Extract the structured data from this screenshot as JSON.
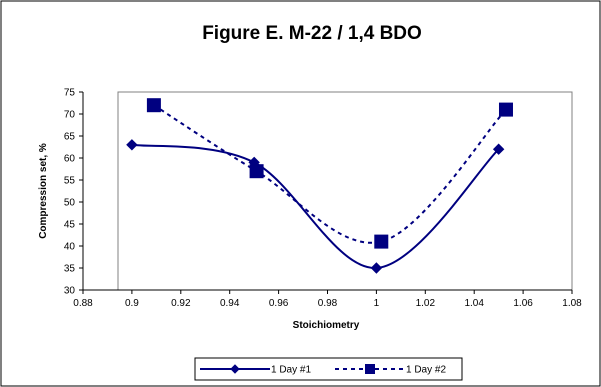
{
  "chart_data": {
    "type": "line",
    "title": "Figure E.  M-22 / 1,4 BDO",
    "xlabel": "Stoichiometry",
    "ylabel": "Compression set, %",
    "xlim": [
      0.88,
      1.08
    ],
    "ylim": [
      30,
      75
    ],
    "x_ticks": [
      "0.88",
      "0.9",
      "0.92",
      "0.94",
      "0.96",
      "0.98",
      "1",
      "1.02",
      "1.04",
      "1.06",
      "1.08"
    ],
    "y_ticks": [
      "30",
      "35",
      "40",
      "45",
      "50",
      "55",
      "60",
      "65",
      "70",
      "75"
    ],
    "grid": false,
    "legend_position": "bottom",
    "series": [
      {
        "name": "1 Day #1",
        "marker": "diamond",
        "line_style": "solid",
        "color": "#000080",
        "x": [
          0.9,
          0.95,
          1.0,
          1.05
        ],
        "y": [
          63,
          59,
          35,
          62
        ]
      },
      {
        "name": "1 Day #2",
        "marker": "square",
        "line_style": "dashed",
        "color": "#000080",
        "x": [
          0.909,
          0.951,
          1.002,
          1.053
        ],
        "y": [
          72,
          57,
          41,
          71
        ]
      }
    ]
  }
}
